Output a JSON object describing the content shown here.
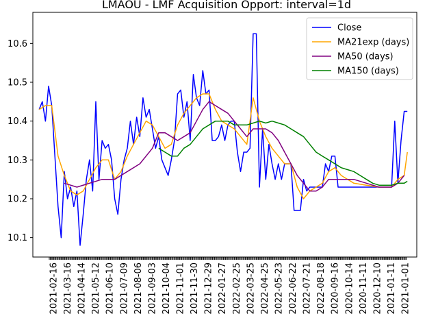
{
  "chart_data": {
    "type": "line",
    "title": "LMAOU - LMF Acquisition Opport: interval=1d",
    "xlabel": "",
    "ylabel": "",
    "ylim": [
      10.05,
      10.68
    ],
    "y_ticks": [
      10.1,
      10.2,
      10.3,
      10.4,
      10.5,
      10.6
    ],
    "x_tick_labels": [
      "2021-02-16",
      "2021-03-16",
      "2021-04-14",
      "2021-05-12",
      "2021-06-10",
      "2021-07-09",
      "2021-08-06",
      "2021-09-03",
      "2021-10-04",
      "2021-11-01",
      "2021-11-30",
      "2021-12-29",
      "2022-01-27",
      "2022-02-25",
      "2022-03-25",
      "2022-04-25",
      "2022-05-23",
      "2022-06-22",
      "2022-07-21",
      "2022-08-18",
      "2020-09-16",
      "2020-10-14",
      "2020-11-11",
      "2020-12-10",
      "2021-01-11",
      "2021-01-01"
    ],
    "grid": false,
    "legend_position": "top-right",
    "series": [
      {
        "name": "Close",
        "color": "#0000ff",
        "points": [
          [
            0,
            10.43
          ],
          [
            0.5,
            10.45
          ],
          [
            1,
            10.4
          ],
          [
            1.5,
            10.49
          ],
          [
            2,
            10.44
          ],
          [
            3,
            10.18
          ],
          [
            3.5,
            10.1
          ],
          [
            4,
            10.27
          ],
          [
            4.5,
            10.2
          ],
          [
            5,
            10.23
          ],
          [
            5.5,
            10.18
          ],
          [
            6,
            10.22
          ],
          [
            6.5,
            10.08
          ],
          [
            7,
            10.16
          ],
          [
            7.5,
            10.25
          ],
          [
            8,
            10.3
          ],
          [
            8.5,
            10.22
          ],
          [
            9,
            10.45
          ],
          [
            9.5,
            10.25
          ],
          [
            10,
            10.35
          ],
          [
            10.5,
            10.33
          ],
          [
            11,
            10.34
          ],
          [
            11.5,
            10.3
          ],
          [
            12,
            10.2
          ],
          [
            12.5,
            10.16
          ],
          [
            13,
            10.25
          ],
          [
            13.5,
            10.3
          ],
          [
            14,
            10.33
          ],
          [
            14.5,
            10.4
          ],
          [
            15,
            10.34
          ],
          [
            15.5,
            10.41
          ],
          [
            16,
            10.36
          ],
          [
            16.5,
            10.46
          ],
          [
            17,
            10.41
          ],
          [
            17.5,
            10.43
          ],
          [
            18,
            10.38
          ],
          [
            18.5,
            10.33
          ],
          [
            19,
            10.36
          ],
          [
            19.5,
            10.3
          ],
          [
            20,
            10.28
          ],
          [
            20.5,
            10.26
          ],
          [
            21,
            10.3
          ],
          [
            21.5,
            10.35
          ],
          [
            22,
            10.47
          ],
          [
            22.5,
            10.48
          ],
          [
            23,
            10.41
          ],
          [
            23.5,
            10.45
          ],
          [
            24,
            10.35
          ],
          [
            24.5,
            10.52
          ],
          [
            25,
            10.46
          ],
          [
            25.5,
            10.44
          ],
          [
            26,
            10.53
          ],
          [
            26.5,
            10.47
          ],
          [
            27,
            10.48
          ],
          [
            27.5,
            10.35
          ],
          [
            28,
            10.35
          ],
          [
            28.5,
            10.36
          ],
          [
            29,
            10.39
          ],
          [
            29.5,
            10.35
          ],
          [
            30,
            10.39
          ],
          [
            30.5,
            10.4
          ],
          [
            31,
            10.4
          ],
          [
            31.5,
            10.32
          ],
          [
            32,
            10.27
          ],
          [
            32.5,
            10.32
          ],
          [
            33,
            10.32
          ],
          [
            33.5,
            10.33
          ],
          [
            34,
            10.625
          ],
          [
            34.5,
            10.625
          ],
          [
            35,
            10.23
          ],
          [
            35.5,
            10.38
          ],
          [
            36,
            10.25
          ],
          [
            36.5,
            10.34
          ],
          [
            37,
            10.29
          ],
          [
            37.5,
            10.25
          ],
          [
            38,
            10.29
          ],
          [
            38.5,
            10.25
          ],
          [
            39,
            10.29
          ],
          [
            40,
            10.29
          ],
          [
            40.5,
            10.17
          ],
          [
            41,
            10.17
          ],
          [
            41.5,
            10.17
          ],
          [
            42,
            10.25
          ],
          [
            42.5,
            10.22
          ],
          [
            43,
            10.23
          ],
          [
            44,
            10.23
          ],
          [
            45,
            10.23
          ],
          [
            45.5,
            10.29
          ],
          [
            46,
            10.27
          ],
          [
            46.5,
            10.31
          ],
          [
            47,
            10.31
          ],
          [
            47.5,
            10.23
          ],
          [
            48,
            10.23
          ],
          [
            50,
            10.23
          ],
          [
            52,
            10.23
          ],
          [
            54,
            10.23
          ],
          [
            55.5,
            10.23
          ],
          [
            56,
            10.23
          ],
          [
            56.5,
            10.4
          ],
          [
            57,
            10.24
          ],
          [
            57.5,
            10.35
          ],
          [
            58,
            10.425
          ],
          [
            58.5,
            10.425
          ]
        ]
      },
      {
        "name": "MA21exp (days)",
        "color": "#ffa500",
        "points": [
          [
            0,
            10.43
          ],
          [
            1,
            10.44
          ],
          [
            2,
            10.44
          ],
          [
            3,
            10.31
          ],
          [
            4,
            10.26
          ],
          [
            5,
            10.22
          ],
          [
            6,
            10.21
          ],
          [
            7,
            10.22
          ],
          [
            8,
            10.25
          ],
          [
            9,
            10.28
          ],
          [
            10,
            10.3
          ],
          [
            11,
            10.3
          ],
          [
            12,
            10.25
          ],
          [
            13,
            10.27
          ],
          [
            14,
            10.31
          ],
          [
            15,
            10.34
          ],
          [
            16,
            10.37
          ],
          [
            17,
            10.4
          ],
          [
            18,
            10.39
          ],
          [
            19,
            10.36
          ],
          [
            20,
            10.33
          ],
          [
            21,
            10.34
          ],
          [
            22,
            10.39
          ],
          [
            23,
            10.42
          ],
          [
            24,
            10.44
          ],
          [
            25,
            10.46
          ],
          [
            26,
            10.47
          ],
          [
            27,
            10.47
          ],
          [
            28,
            10.43
          ],
          [
            29,
            10.4
          ],
          [
            30,
            10.39
          ],
          [
            31,
            10.38
          ],
          [
            32,
            10.36
          ],
          [
            33,
            10.34
          ],
          [
            34,
            10.46
          ],
          [
            35,
            10.4
          ],
          [
            36,
            10.36
          ],
          [
            37,
            10.33
          ],
          [
            38,
            10.31
          ],
          [
            39,
            10.29
          ],
          [
            40,
            10.29
          ],
          [
            41,
            10.23
          ],
          [
            42,
            10.2
          ],
          [
            43,
            10.22
          ],
          [
            44,
            10.23
          ],
          [
            45,
            10.24
          ],
          [
            46,
            10.27
          ],
          [
            47,
            10.28
          ],
          [
            48,
            10.26
          ],
          [
            50,
            10.24
          ],
          [
            52,
            10.235
          ],
          [
            54,
            10.23
          ],
          [
            56,
            10.23
          ],
          [
            57,
            10.25
          ],
          [
            58,
            10.26
          ],
          [
            58.5,
            10.32
          ]
        ]
      },
      {
        "name": "MA50 (days)",
        "color": "#800080",
        "points": [
          [
            4,
            10.24
          ],
          [
            6,
            10.23
          ],
          [
            8,
            10.24
          ],
          [
            10,
            10.25
          ],
          [
            12,
            10.25
          ],
          [
            14,
            10.27
          ],
          [
            16,
            10.29
          ],
          [
            18,
            10.33
          ],
          [
            19,
            10.37
          ],
          [
            20,
            10.37
          ],
          [
            21,
            10.36
          ],
          [
            22,
            10.35
          ],
          [
            24,
            10.37
          ],
          [
            25,
            10.4
          ],
          [
            26,
            10.43
          ],
          [
            27,
            10.45
          ],
          [
            28,
            10.44
          ],
          [
            29,
            10.43
          ],
          [
            30,
            10.42
          ],
          [
            31,
            10.4
          ],
          [
            32,
            10.38
          ],
          [
            33,
            10.36
          ],
          [
            34,
            10.38
          ],
          [
            35,
            10.38
          ],
          [
            36,
            10.38
          ],
          [
            37,
            10.37
          ],
          [
            38,
            10.35
          ],
          [
            39,
            10.32
          ],
          [
            40,
            10.29
          ],
          [
            41,
            10.26
          ],
          [
            42,
            10.24
          ],
          [
            43,
            10.22
          ],
          [
            44,
            10.22
          ],
          [
            45,
            10.23
          ],
          [
            46,
            10.25
          ],
          [
            47,
            10.25
          ],
          [
            50,
            10.25
          ],
          [
            52,
            10.24
          ],
          [
            54,
            10.23
          ],
          [
            56,
            10.23
          ],
          [
            57,
            10.24
          ],
          [
            58,
            10.26
          ]
        ]
      },
      {
        "name": "MA150 (days)",
        "color": "#008000",
        "points": [
          [
            19,
            10.33
          ],
          [
            20,
            10.32
          ],
          [
            21,
            10.31
          ],
          [
            22,
            10.31
          ],
          [
            23,
            10.33
          ],
          [
            24,
            10.34
          ],
          [
            25,
            10.36
          ],
          [
            26,
            10.38
          ],
          [
            27,
            10.39
          ],
          [
            28,
            10.4
          ],
          [
            29,
            10.4
          ],
          [
            30,
            10.4
          ],
          [
            31,
            10.39
          ],
          [
            32,
            10.39
          ],
          [
            33,
            10.39
          ],
          [
            34,
            10.395
          ],
          [
            35,
            10.4
          ],
          [
            36,
            10.395
          ],
          [
            37,
            10.4
          ],
          [
            38,
            10.395
          ],
          [
            39,
            10.39
          ],
          [
            40,
            10.38
          ],
          [
            41,
            10.37
          ],
          [
            42,
            10.36
          ],
          [
            43,
            10.34
          ],
          [
            44,
            10.32
          ],
          [
            45,
            10.31
          ],
          [
            46,
            10.3
          ],
          [
            47,
            10.29
          ],
          [
            48,
            10.28
          ],
          [
            49,
            10.275
          ],
          [
            50,
            10.27
          ],
          [
            51,
            10.26
          ],
          [
            52,
            10.25
          ],
          [
            53,
            10.24
          ],
          [
            54,
            10.235
          ],
          [
            55,
            10.235
          ],
          [
            56,
            10.235
          ],
          [
            57,
            10.24
          ],
          [
            58,
            10.24
          ],
          [
            58.5,
            10.245
          ]
        ]
      }
    ]
  }
}
